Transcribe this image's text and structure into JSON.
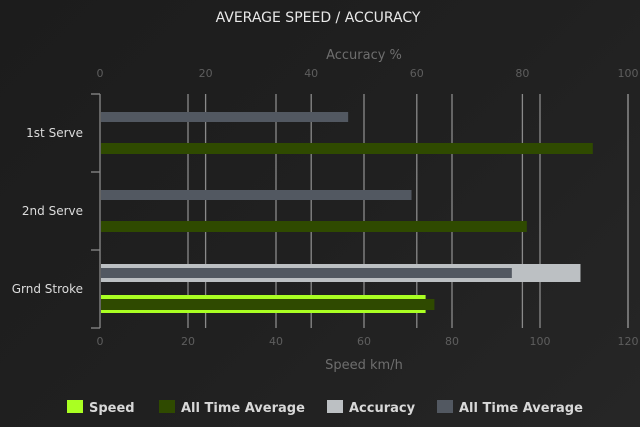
{
  "chart_data": {
    "type": "bar",
    "orientation": "horizontal",
    "title": "AVERAGE SPEED / ACCURACY",
    "categories": [
      "1st Serve",
      "2nd Serve",
      "Grnd Stroke"
    ],
    "x_bottom": {
      "label": "Speed km/h",
      "range": [
        0,
        120
      ],
      "ticks": [
        0,
        20,
        40,
        60,
        80,
        100,
        120
      ]
    },
    "x_top": {
      "label": "Accuracy %",
      "range": [
        0,
        100
      ],
      "ticks": [
        0,
        20,
        40,
        60,
        80,
        100
      ]
    },
    "grid": true,
    "legend_position": "bottom",
    "series": [
      {
        "name": "Speed",
        "axis": "bottom",
        "color": "#aaff22",
        "values": [
          0,
          0,
          74
        ]
      },
      {
        "name": "All Time Average",
        "axis": "bottom",
        "color": "#2f4a00",
        "values": [
          112,
          97,
          76
        ]
      },
      {
        "name": "Accuracy",
        "axis": "top",
        "color": "#bcc0c3",
        "values": [
          0,
          0,
          91
        ]
      },
      {
        "name": "All Time Average",
        "axis": "top",
        "color": "#525861",
        "values": [
          47,
          59,
          78
        ]
      }
    ]
  }
}
